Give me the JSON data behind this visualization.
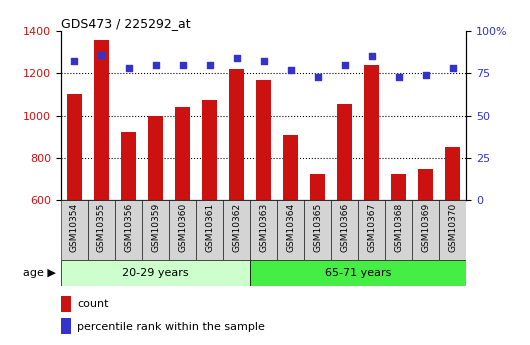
{
  "title": "GDS473 / 225292_at",
  "samples": [
    "GSM10354",
    "GSM10355",
    "GSM10356",
    "GSM10359",
    "GSM10360",
    "GSM10361",
    "GSM10362",
    "GSM10363",
    "GSM10364",
    "GSM10365",
    "GSM10366",
    "GSM10367",
    "GSM10368",
    "GSM10369",
    "GSM10370"
  ],
  "counts": [
    1100,
    1360,
    920,
    1000,
    1040,
    1075,
    1220,
    1170,
    910,
    725,
    1055,
    1240,
    725,
    745,
    850
  ],
  "percentile_ranks": [
    82,
    86,
    78,
    80,
    80,
    80,
    84,
    82,
    77,
    73,
    80,
    85,
    73,
    74,
    78
  ],
  "group1_label": "20-29 years",
  "group1_count": 7,
  "group2_label": "65-71 years",
  "group2_count": 8,
  "age_label": "age",
  "ylim_left": [
    600,
    1400
  ],
  "ylim_right": [
    0,
    100
  ],
  "yticks_left": [
    600,
    800,
    1000,
    1200,
    1400
  ],
  "yticks_right": [
    0,
    25,
    50,
    75,
    100
  ],
  "bar_color": "#cc1111",
  "dot_color": "#3333cc",
  "group1_bg": "#ccffcc",
  "group2_bg": "#44ee44",
  "xtick_bg": "#d4d4d4",
  "legend_count_label": "count",
  "legend_pct_label": "percentile rank within the sample",
  "bar_width": 0.55,
  "figsize": [
    5.3,
    3.45
  ],
  "dpi": 100
}
